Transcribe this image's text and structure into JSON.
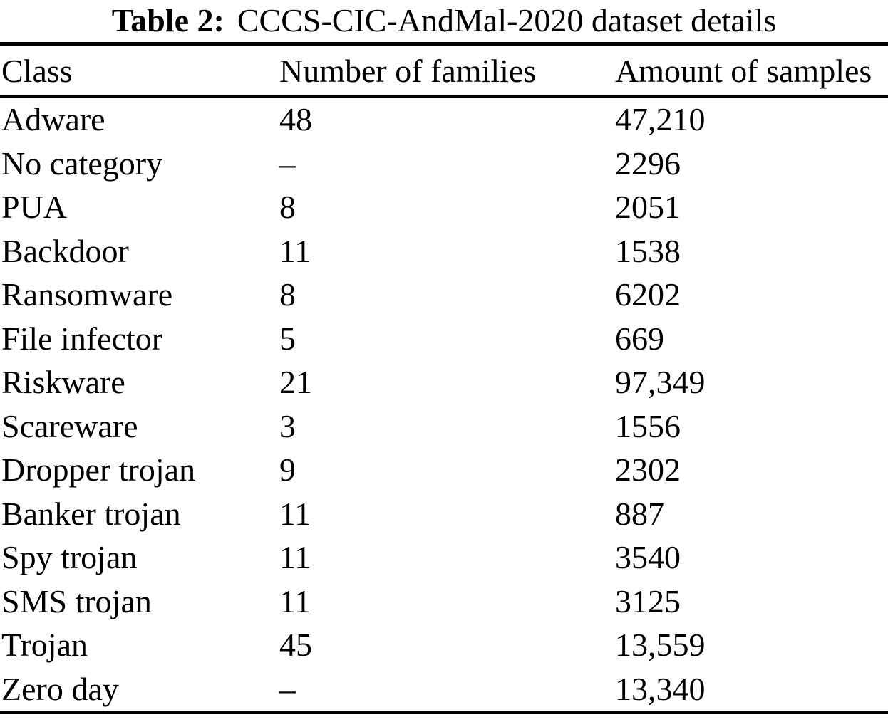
{
  "colors": {
    "text": "#000000",
    "background": "#ffffff",
    "rule": "#000000"
  },
  "table": {
    "caption": {
      "label": "Table 2:",
      "text": "CCCS-CIC-AndMal-2020 dataset details"
    },
    "columns": [
      "Class",
      "Number of families",
      "Amount of samples"
    ],
    "rows": [
      {
        "class": "Adware",
        "families": "48",
        "samples": "47,210"
      },
      {
        "class": "No category",
        "families": "–",
        "samples": "2296"
      },
      {
        "class": "PUA",
        "families": "8",
        "samples": "2051"
      },
      {
        "class": "Backdoor",
        "families": "11",
        "samples": "1538"
      },
      {
        "class": "Ransomware",
        "families": "8",
        "samples": "6202"
      },
      {
        "class": "File infector",
        "families": "5",
        "samples": "669"
      },
      {
        "class": "Riskware",
        "families": "21",
        "samples": "97,349"
      },
      {
        "class": "Scareware",
        "families": "3",
        "samples": "1556"
      },
      {
        "class": "Dropper trojan",
        "families": "9",
        "samples": "2302"
      },
      {
        "class": "Banker trojan",
        "families": "11",
        "samples": "887"
      },
      {
        "class": "Spy trojan",
        "families": "11",
        "samples": "3540"
      },
      {
        "class": "SMS trojan",
        "families": "11",
        "samples": "3125"
      },
      {
        "class": "Trojan",
        "families": "45",
        "samples": "13,559"
      },
      {
        "class": "Zero day",
        "families": "–",
        "samples": "13,340"
      }
    ]
  }
}
